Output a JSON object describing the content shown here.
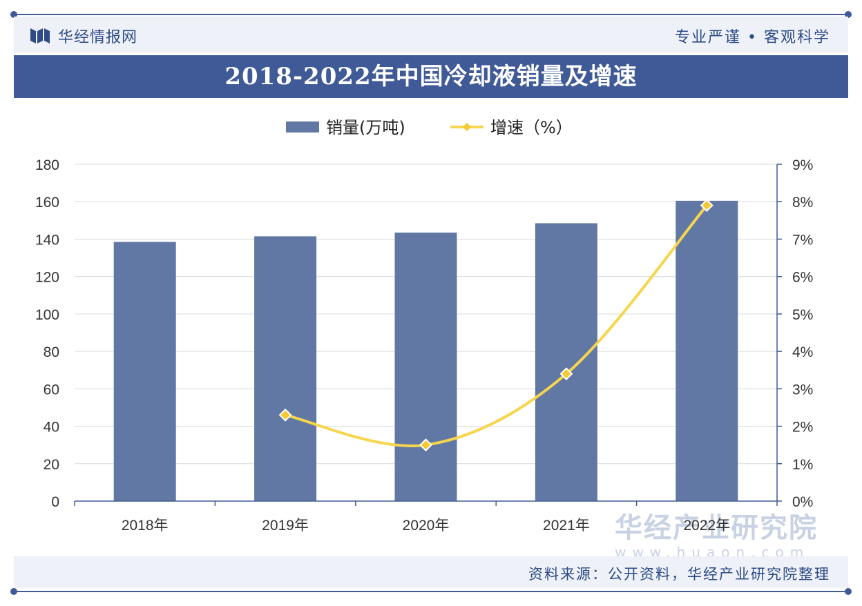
{
  "header": {
    "logo_text": "华经情报网",
    "slogan": "专业严谨 • 客观科学"
  },
  "title": "2018-2022年中国冷却液销量及增速",
  "footer": {
    "source": "资料来源：公开资料，华经产业研究院整理"
  },
  "watermark": {
    "name": "华经产业研究院",
    "url": "www.huaon.com"
  },
  "colors": {
    "bar": "#6178a4",
    "line": "#f7d54d",
    "marker": "#f5c932",
    "accent": "#3f5a96"
  },
  "chart_data": {
    "type": "bar",
    "categories": [
      "2018年",
      "2019年",
      "2020年",
      "2021年",
      "2022年"
    ],
    "series": [
      {
        "name": "销量(万吨)",
        "type": "bar",
        "axis": "left",
        "values": [
          138.5,
          141.5,
          143.5,
          148.5,
          160.5
        ]
      },
      {
        "name": "增速（%）",
        "type": "line",
        "axis": "right",
        "values": [
          null,
          2.3,
          1.5,
          3.4,
          7.9
        ]
      }
    ],
    "left_axis": {
      "ylim": [
        0,
        180
      ],
      "ticks": [
        "0",
        "20",
        "40",
        "60",
        "80",
        "100",
        "120",
        "140",
        "160",
        "180"
      ]
    },
    "right_axis": {
      "ylim": [
        0,
        9
      ],
      "ticks": [
        "0%",
        "1%",
        "2%",
        "3%",
        "4%",
        "5%",
        "6%",
        "7%",
        "8%",
        "9%"
      ]
    },
    "grid": true,
    "legend": "top-center"
  }
}
